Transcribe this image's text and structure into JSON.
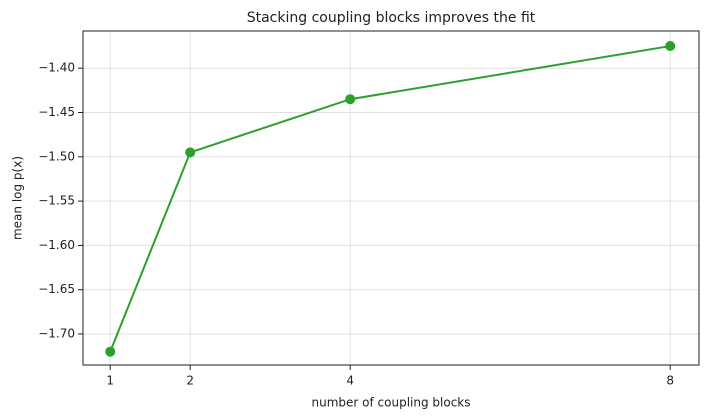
{
  "chart_data": {
    "type": "line",
    "title": "Stacking coupling blocks improves the fit",
    "x_label": "number of coupling blocks",
    "y_label": "mean log p(x)",
    "x": [
      1,
      2,
      4,
      8
    ],
    "series": [
      {
        "name": "mean log p(x)",
        "color": "#2ca02c",
        "values": [
          -1.72,
          -1.495,
          -1.435,
          -1.375
        ]
      }
    ],
    "xlim": [
      0.66,
      8.36
    ],
    "xticks": [
      1,
      2,
      4,
      8
    ],
    "ylim": [
      -1.735,
      -1.358
    ],
    "yticks": [
      {
        "value": -1.7,
        "label": "−1.70"
      },
      {
        "value": -1.65,
        "label": "−1.65"
      },
      {
        "value": -1.6,
        "label": "−1.60"
      },
      {
        "value": -1.55,
        "label": "−1.55"
      },
      {
        "value": -1.5,
        "label": "−1.50"
      },
      {
        "value": -1.45,
        "label": "−1.45"
      },
      {
        "value": -1.4,
        "label": "−1.40"
      }
    ],
    "grid": true
  }
}
